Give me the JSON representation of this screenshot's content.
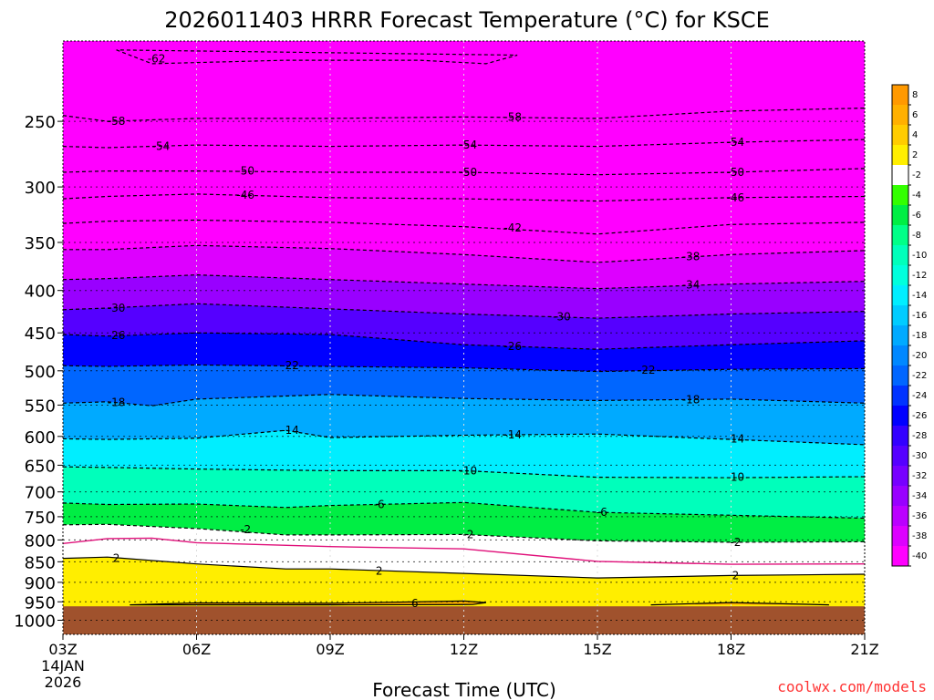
{
  "title": "2026011403 HRRR Forecast Temperature (°C) for KSCE",
  "credit": "coolwx.com/models",
  "chart_data": {
    "type": "heatmap",
    "title": "2026011403 HRRR Forecast Temperature (°C) for KSCE",
    "xlabel": "Forecast Time (UTC)",
    "ylabel": "",
    "x_ticks": [
      "03Z",
      "06Z",
      "09Z",
      "12Z",
      "15Z",
      "18Z",
      "21Z"
    ],
    "x_tick_hours": [
      3,
      6,
      9,
      12,
      15,
      18,
      21
    ],
    "x_start_date_line1": "14JAN",
    "x_start_date_line2": "2026",
    "xlim": [
      3,
      21
    ],
    "y_ticks": [
      250,
      300,
      350,
      400,
      450,
      500,
      550,
      600,
      650,
      700,
      750,
      800,
      850,
      900,
      950,
      1000
    ],
    "ylim_hpa": [
      200,
      1040
    ],
    "y_scale": "log",
    "ground_pressure_hpa": 962,
    "colorbar_labels": [
      "8",
      "6",
      "4",
      "2",
      "-2",
      "-4",
      "-6",
      "-8",
      "-10",
      "-12",
      "-14",
      "-16",
      "-18",
      "-20",
      "-22",
      "-24",
      "-26",
      "-28",
      "-30",
      "-32",
      "-34",
      "-36",
      "-38",
      "-40"
    ],
    "colorbar_colors": [
      "#ff9900",
      "#ffb000",
      "#ffcc00",
      "#ffee00",
      "#ffffff",
      "#33ff00",
      "#00ee44",
      "#00ff88",
      "#00ffbb",
      "#00ffdd",
      "#00eeff",
      "#00ccff",
      "#00aaff",
      "#0088ff",
      "#0066ff",
      "#0033ff",
      "#0000ff",
      "#3300ff",
      "#5500ff",
      "#7700ff",
      "#9900ff",
      "#bb00ff",
      "#dd00ff",
      "#ff00ff"
    ],
    "ground_color": "#a0522d",
    "isotherms": [
      {
        "label": "-62",
        "temp": -62,
        "hours": [
          4.2,
          5,
          8,
          11,
          12.5,
          13.2
        ],
        "pressure_hpa": [
          205,
          213,
          211,
          211,
          213,
          208
        ]
      },
      {
        "label": "-58",
        "temp": -58,
        "hours": [
          3,
          4,
          6,
          9,
          12,
          15,
          18,
          21
        ],
        "pressure_hpa": [
          246,
          250,
          248,
          248,
          247,
          248,
          243,
          241
        ]
      },
      {
        "label": "-54",
        "temp": -54,
        "hours": [
          3,
          4,
          6,
          9,
          12,
          15,
          18,
          21
        ],
        "pressure_hpa": [
          268,
          269,
          267,
          268,
          267,
          268,
          265,
          263
        ]
      },
      {
        "label": "-50",
        "temp": -50,
        "hours": [
          3,
          4,
          6,
          9,
          12,
          15,
          18,
          21
        ],
        "pressure_hpa": [
          288,
          287,
          287,
          288,
          288,
          290,
          288,
          285
        ]
      },
      {
        "label": "-46",
        "temp": -46,
        "hours": [
          3,
          4,
          6,
          9,
          12,
          15,
          18,
          21
        ],
        "pressure_hpa": [
          310,
          308,
          306,
          309,
          310,
          312,
          309,
          308
        ]
      },
      {
        "label": "-42",
        "temp": -42,
        "hours": [
          3,
          4,
          6,
          9,
          12,
          15,
          18,
          21
        ],
        "pressure_hpa": [
          332,
          330,
          329,
          331,
          335,
          342,
          333,
          331
        ]
      },
      {
        "label": "-38",
        "temp": -38,
        "hours": [
          3,
          4,
          6,
          9,
          12,
          15,
          18,
          21
        ],
        "pressure_hpa": [
          357,
          357,
          353,
          356,
          362,
          370,
          362,
          358
        ]
      },
      {
        "label": "-34",
        "temp": -34,
        "hours": [
          3,
          4,
          6,
          9,
          12,
          15,
          18,
          21
        ],
        "pressure_hpa": [
          388,
          387,
          383,
          388,
          393,
          398,
          393,
          390
        ]
      },
      {
        "label": "-30",
        "temp": -30,
        "hours": [
          3,
          4,
          6,
          9,
          12,
          15,
          18,
          21
        ],
        "pressure_hpa": [
          422,
          420,
          415,
          421,
          427,
          432,
          427,
          424
        ]
      },
      {
        "label": "-26",
        "temp": -26,
        "hours": [
          3,
          4,
          6,
          9,
          12,
          15,
          18,
          21
        ],
        "pressure_hpa": [
          452,
          454,
          450,
          452,
          465,
          471,
          465,
          460
        ]
      },
      {
        "label": "-22",
        "temp": -22,
        "hours": [
          3,
          4,
          6,
          9,
          12,
          15,
          18,
          21
        ],
        "pressure_hpa": [
          493,
          494,
          492,
          494,
          496,
          501,
          498,
          497
        ]
      },
      {
        "label": "-18",
        "temp": -18,
        "hours": [
          3,
          4,
          5,
          6,
          9,
          12,
          15,
          18,
          21
        ],
        "pressure_hpa": [
          547,
          545,
          551,
          541,
          534,
          540,
          543,
          541,
          547
        ]
      },
      {
        "label": "-14",
        "temp": -14,
        "hours": [
          3,
          4,
          6,
          8,
          9,
          12,
          15,
          18,
          21
        ],
        "pressure_hpa": [
          604,
          605,
          603,
          590,
          602,
          598,
          596,
          605,
          614
        ]
      },
      {
        "label": "-10",
        "temp": -10,
        "hours": [
          3,
          4,
          6,
          9,
          12,
          15,
          18,
          21
        ],
        "pressure_hpa": [
          653,
          654,
          657,
          660,
          660,
          672,
          673,
          671
        ]
      },
      {
        "label": "-6",
        "temp": -6,
        "hours": [
          3,
          4,
          6,
          8,
          9,
          12,
          15,
          18,
          21
        ],
        "pressure_hpa": [
          722,
          725,
          724,
          731,
          727,
          721,
          741,
          747,
          753
        ]
      },
      {
        "label": "-2",
        "temp": -2,
        "hours": [
          3,
          4,
          6,
          8,
          9,
          12,
          15,
          18,
          21
        ],
        "pressure_hpa": [
          767,
          766,
          775,
          789,
          789,
          788,
          802,
          805,
          804
        ]
      },
      {
        "label": "2",
        "temp": 2,
        "hours": [
          3,
          4,
          6,
          8,
          9,
          12,
          15,
          18,
          21
        ],
        "pressure_hpa": [
          842,
          839,
          855,
          867,
          867,
          878,
          889,
          883,
          880
        ]
      },
      {
        "label": "6",
        "temp": 6,
        "hours": [
          4.5,
          6,
          9,
          12,
          12.5,
          12.2,
          9,
          8,
          4.5
        ],
        "pressure_hpa": [
          958,
          953,
          954,
          948,
          952,
          957,
          958,
          958,
          958
        ]
      },
      {
        "label": "6",
        "temp": 6,
        "hours": [
          16.2,
          18,
          20.2
        ],
        "pressure_hpa": [
          958,
          952,
          958
        ]
      }
    ],
    "freezing_line": {
      "label": "",
      "temp": 0,
      "hours": [
        3,
        4,
        5,
        6,
        9,
        12,
        15,
        18,
        21
      ],
      "pressure_hpa": [
        808,
        797,
        796,
        806,
        815,
        820,
        849,
        856,
        855
      ]
    },
    "contour_labels": [
      {
        "text": "-62",
        "hour": 5.1,
        "pressure_hpa": 210
      },
      {
        "text": "-58",
        "hour": 4.2,
        "pressure_hpa": 250
      },
      {
        "text": "-58",
        "hour": 13.1,
        "pressure_hpa": 247
      },
      {
        "text": "-54",
        "hour": 5.2,
        "pressure_hpa": 268
      },
      {
        "text": "-54",
        "hour": 12.1,
        "pressure_hpa": 267
      },
      {
        "text": "-54",
        "hour": 18.1,
        "pressure_hpa": 265
      },
      {
        "text": "-50",
        "hour": 7.1,
        "pressure_hpa": 287
      },
      {
        "text": "-50",
        "hour": 12.1,
        "pressure_hpa": 288
      },
      {
        "text": "-50",
        "hour": 18.1,
        "pressure_hpa": 288
      },
      {
        "text": "-46",
        "hour": 7.1,
        "pressure_hpa": 307
      },
      {
        "text": "-46",
        "hour": 18.1,
        "pressure_hpa": 309
      },
      {
        "text": "-42",
        "hour": 13.1,
        "pressure_hpa": 336
      },
      {
        "text": "-38",
        "hour": 17.1,
        "pressure_hpa": 364
      },
      {
        "text": "-34",
        "hour": 17.1,
        "pressure_hpa": 394
      },
      {
        "text": "-30",
        "hour": 4.2,
        "pressure_hpa": 420
      },
      {
        "text": "-30",
        "hour": 14.2,
        "pressure_hpa": 430
      },
      {
        "text": "-26",
        "hour": 4.2,
        "pressure_hpa": 453
      },
      {
        "text": "-26",
        "hour": 13.1,
        "pressure_hpa": 467
      },
      {
        "text": "-22",
        "hour": 8.1,
        "pressure_hpa": 493
      },
      {
        "text": "-22",
        "hour": 16.1,
        "pressure_hpa": 499
      },
      {
        "text": "-18",
        "hour": 4.2,
        "pressure_hpa": 546
      },
      {
        "text": "-18",
        "hour": 17.1,
        "pressure_hpa": 542
      },
      {
        "text": "-14",
        "hour": 8.1,
        "pressure_hpa": 590
      },
      {
        "text": "-14",
        "hour": 13.1,
        "pressure_hpa": 597
      },
      {
        "text": "-14",
        "hour": 18.1,
        "pressure_hpa": 604
      },
      {
        "text": "-10",
        "hour": 12.1,
        "pressure_hpa": 660
      },
      {
        "text": "-10",
        "hour": 18.1,
        "pressure_hpa": 672
      },
      {
        "text": "-6",
        "hour": 10.1,
        "pressure_hpa": 725
      },
      {
        "text": "-6",
        "hour": 15.1,
        "pressure_hpa": 741
      },
      {
        "text": "-2",
        "hour": 7.1,
        "pressure_hpa": 777
      },
      {
        "text": "-2",
        "hour": 12.1,
        "pressure_hpa": 788
      },
      {
        "text": "-2",
        "hour": 18.1,
        "pressure_hpa": 805
      },
      {
        "text": "2",
        "hour": 4.2,
        "pressure_hpa": 842
      },
      {
        "text": "2",
        "hour": 10.1,
        "pressure_hpa": 872
      },
      {
        "text": "2",
        "hour": 18.1,
        "pressure_hpa": 883
      },
      {
        "text": "6",
        "hour": 10.9,
        "pressure_hpa": 954
      }
    ],
    "grid": true
  }
}
